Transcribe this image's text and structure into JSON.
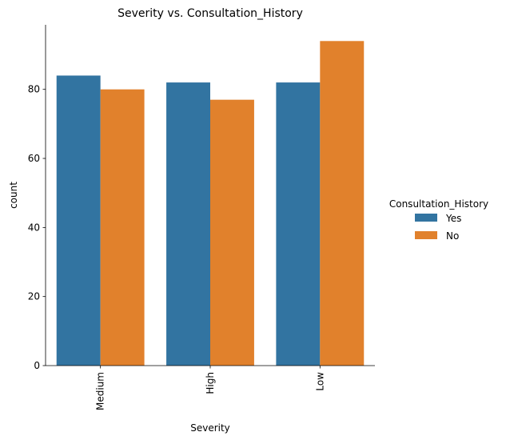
{
  "chart_data": {
    "type": "bar",
    "title": "Severity vs. Consultation_History",
    "xlabel": "Severity",
    "ylabel": "count",
    "categories": [
      "Medium",
      "High",
      "Low"
    ],
    "series": [
      {
        "name": "Yes",
        "values": [
          84,
          82,
          82
        ],
        "color": "#3274a1"
      },
      {
        "name": "No",
        "values": [
          80,
          77,
          94
        ],
        "color": "#e1812c"
      }
    ],
    "ylim": [
      0,
      98.7
    ],
    "yticks": [
      0,
      20,
      40,
      60,
      80
    ],
    "legend": {
      "title": "Consultation_History",
      "placement": "right"
    },
    "grid": false
  }
}
